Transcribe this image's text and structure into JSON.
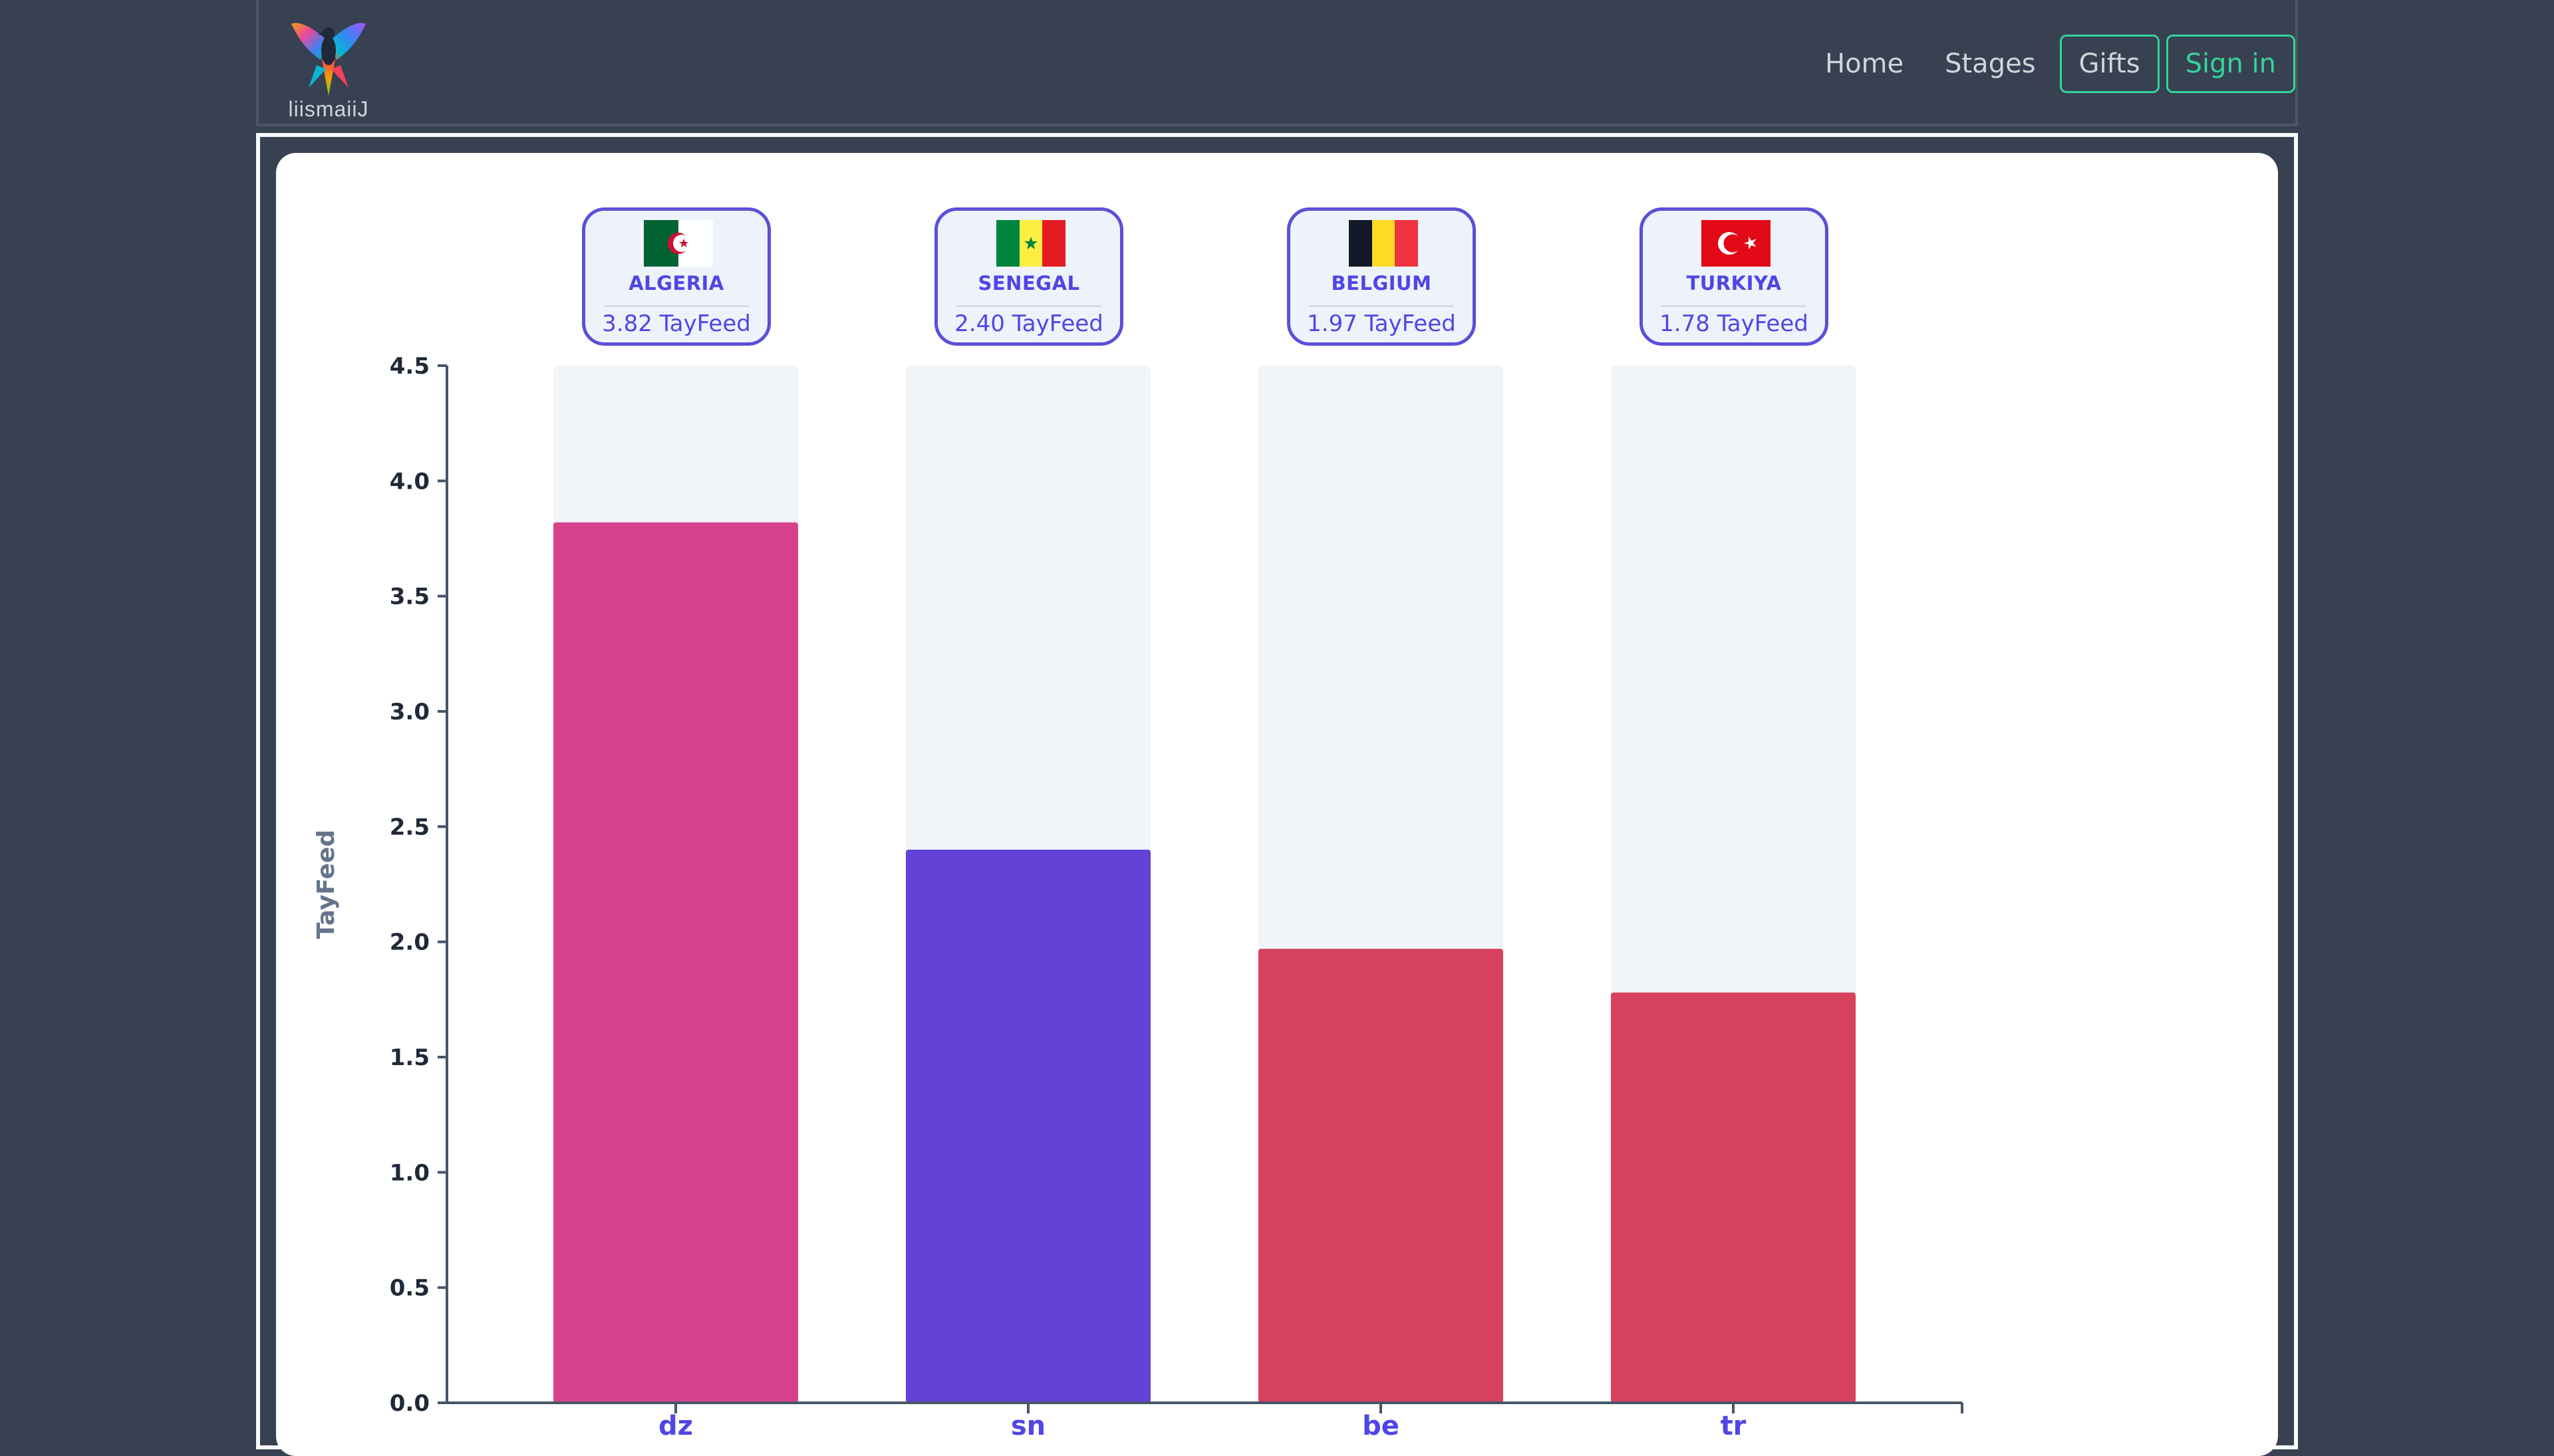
{
  "navbar": {
    "logo_text": "liismaiiJ",
    "links": {
      "home": "Home",
      "stages": "Stages",
      "gifts": "Gifts",
      "signin": "Sign in"
    }
  },
  "colors": {
    "background": "#374151",
    "accent_green": "#34d399",
    "badge_border": "#5b4fd8",
    "badge_text": "#4f46e5",
    "track": "#f1f4f9"
  },
  "badges": [
    {
      "name": "ALGERIA",
      "value_text": "3.82 TayFeed",
      "flag": "algeria-flag-icon"
    },
    {
      "name": "SENEGAL",
      "value_text": "2.40 TayFeed",
      "flag": "senegal-flag-icon"
    },
    {
      "name": "BELGIUM",
      "value_text": "1.97 TayFeed",
      "flag": "belgium-flag-icon"
    },
    {
      "name": "TURKIYA",
      "value_text": "1.78 TayFeed",
      "flag": "turkey-flag-icon"
    }
  ],
  "chart_data": {
    "type": "bar",
    "categories": [
      "dz",
      "sn",
      "be",
      "tr"
    ],
    "values": [
      3.82,
      2.4,
      1.97,
      1.78
    ],
    "bar_colors": [
      "#d6428b",
      "#6342d8",
      "#d6425e",
      "#d6425e"
    ],
    "xlabel": "",
    "ylabel": "TayFeed",
    "ylim": [
      0,
      4.5
    ],
    "yticks": [
      "0.0",
      "0.5",
      "1.0",
      "1.5",
      "2.0",
      "2.5",
      "3.0",
      "3.5",
      "4.0",
      "4.5"
    ],
    "grid": false,
    "legend": "none"
  }
}
